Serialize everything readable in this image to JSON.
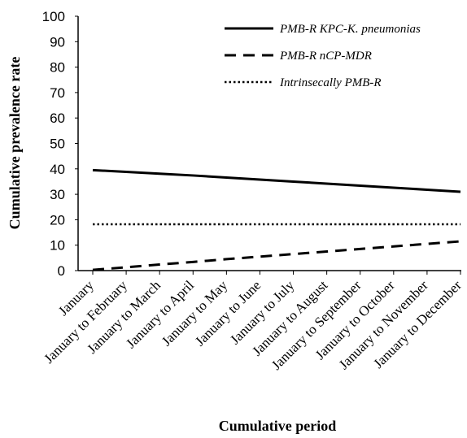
{
  "chart_data": {
    "type": "line",
    "xlabel": "Cumulative period",
    "ylabel": "Cumulative prevalence rate",
    "ylim": [
      0,
      100
    ],
    "yticks": [
      0,
      10,
      20,
      30,
      40,
      50,
      60,
      70,
      80,
      90,
      100
    ],
    "grid": false,
    "legend_position": "top-right",
    "categories": [
      "January",
      "January to February",
      "January to March",
      "January to April",
      "January to May",
      "January to June",
      "January to July",
      "January to August",
      "January to September",
      "January to October",
      "January to November",
      "January to December"
    ],
    "series": [
      {
        "name": "PMB-R KPC-K. pneumonias",
        "line_style": "solid",
        "color": "#000000",
        "values": [
          39.5,
          38.8,
          38.1,
          37.4,
          36.6,
          35.8,
          35.0,
          34.2,
          33.4,
          32.6,
          31.8,
          31.0
        ]
      },
      {
        "name": "PMB-R nCP-MDR",
        "line_style": "dashed",
        "color": "#000000",
        "values": [
          0.3,
          1.3,
          2.4,
          3.4,
          4.5,
          5.5,
          6.5,
          7.5,
          8.5,
          9.5,
          10.5,
          11.5
        ]
      },
      {
        "name": "Intrinsecally PMB-R",
        "line_style": "dotted",
        "color": "#000000",
        "values": [
          18.2,
          18.2,
          18.2,
          18.2,
          18.2,
          18.2,
          18.2,
          18.2,
          18.2,
          18.2,
          18.2,
          18.2
        ]
      }
    ]
  }
}
